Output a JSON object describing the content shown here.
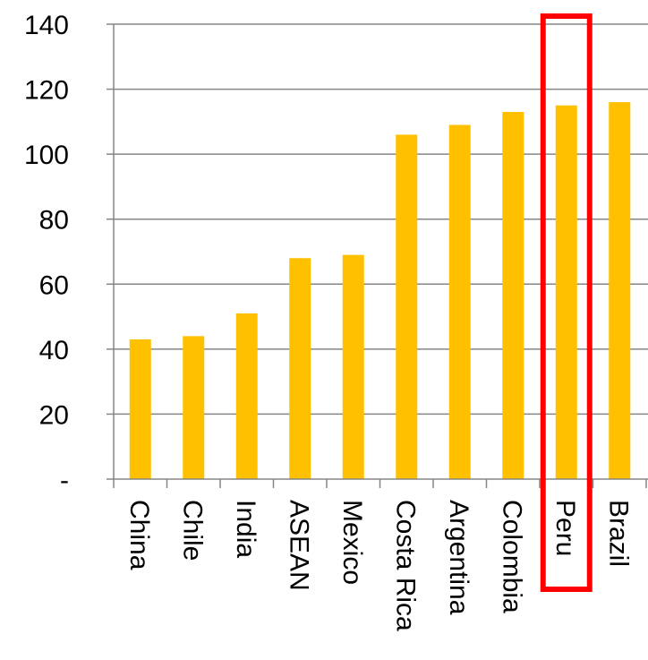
{
  "chart_data": {
    "type": "bar",
    "categories": [
      "China",
      "Chile",
      "India",
      "ASEAN",
      "Mexico",
      "Costa Rica",
      "Argentina",
      "Colombia",
      "Peru",
      "Brazil"
    ],
    "values": [
      43,
      44,
      51,
      68,
      69,
      106,
      109,
      113,
      115,
      116
    ],
    "y_ticks": [
      "-",
      "20",
      "40",
      "60",
      "80",
      "100",
      "120",
      "140"
    ],
    "ylim": [
      0,
      140
    ],
    "grid": true,
    "bar_color": "#FFC000",
    "grid_color": "#868686",
    "highlight": {
      "category": "Peru",
      "color": "#FF0000"
    }
  }
}
